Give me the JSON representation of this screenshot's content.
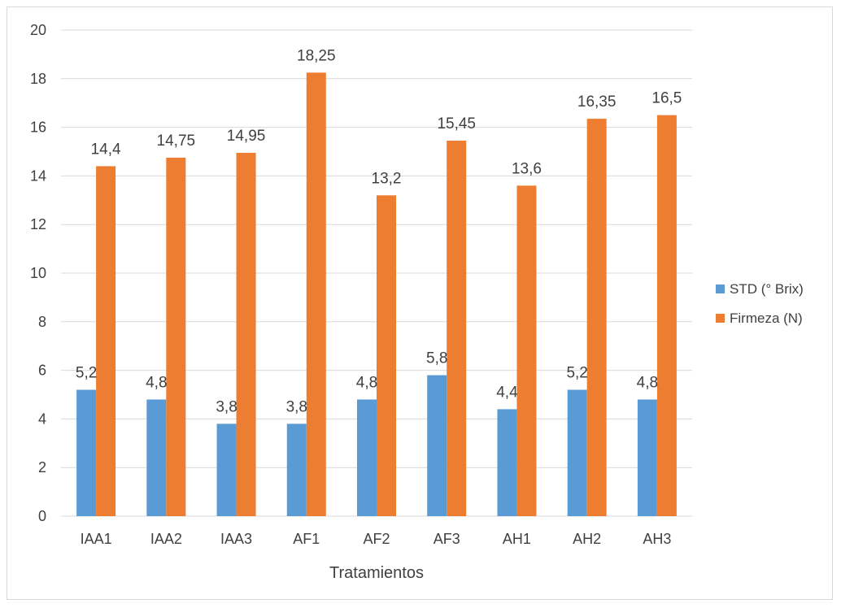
{
  "chart_data": {
    "type": "bar",
    "title": "",
    "xlabel": "Tratamientos",
    "ylabel": "",
    "ylim": [
      0,
      20
    ],
    "yticks": [
      0,
      2,
      4,
      6,
      8,
      10,
      12,
      14,
      16,
      18,
      20
    ],
    "grid": true,
    "legend_position": "right",
    "categories": [
      "IAA1",
      "IAA2",
      "IAA3",
      "AF1",
      "AF2",
      "AF3",
      "AH1",
      "AH2",
      "AH3"
    ],
    "series": [
      {
        "name": "STD (° Brix)",
        "color": "#5b9bd5",
        "values": [
          5.2,
          4.8,
          3.8,
          3.8,
          4.8,
          5.8,
          4.4,
          5.2,
          4.8
        ],
        "labels": [
          "5,2",
          "4,8",
          "3,8",
          "3,8",
          "4,8",
          "5,8",
          "4,4",
          "5,2",
          "4,8"
        ]
      },
      {
        "name": "Firmeza (N)",
        "color": "#ed7d31",
        "values": [
          14.4,
          14.75,
          14.95,
          18.25,
          13.2,
          15.45,
          13.6,
          16.35,
          16.5
        ],
        "labels": [
          "14,4",
          "14,75",
          "14,95",
          "18,25",
          "13,2",
          "15,45",
          "13,6",
          "16,35",
          "16,5"
        ]
      }
    ],
    "gridline_color": "#d9d9d9",
    "text_color": "#404040"
  }
}
